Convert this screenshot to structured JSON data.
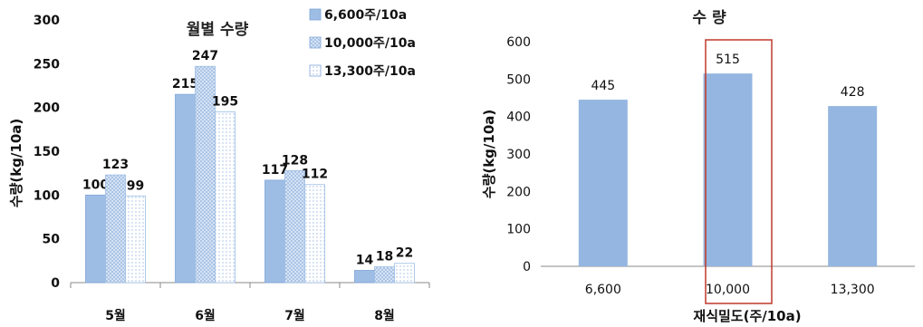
{
  "chart_data": [
    {
      "type": "bar",
      "title": "월별 수량",
      "ylabel": "수량(kg/10a)",
      "xlabel": "",
      "categories": [
        "5월",
        "6월",
        "7월",
        "8월"
      ],
      "ylim": [
        0,
        300
      ],
      "yticks": [
        0,
        50,
        100,
        150,
        200,
        250,
        300
      ],
      "grid": false,
      "legend_position": "top-right",
      "series": [
        {
          "name": "6,600주/10a",
          "values": [
            100,
            215,
            117,
            14
          ],
          "color": "#9dbde4",
          "pattern": "solid"
        },
        {
          "name": "10,000주/10a",
          "values": [
            123,
            247,
            128,
            18
          ],
          "color": "#c9dbf1",
          "pattern": "crosshatch"
        },
        {
          "name": "13,300주/10a",
          "values": [
            99,
            195,
            112,
            22
          ],
          "color": "#e3ecf8",
          "pattern": "dots"
        }
      ]
    },
    {
      "type": "bar",
      "title": "수 량",
      "ylabel": "수량(kg/10a)",
      "xlabel": "재식밀도(주/10a)",
      "categories": [
        "6,600",
        "10,000",
        "13,300"
      ],
      "values": [
        445,
        515,
        428
      ],
      "ylim": [
        0,
        600
      ],
      "yticks": [
        0,
        100,
        200,
        300,
        400,
        500,
        600
      ],
      "grid": false,
      "color": "#94b6e0",
      "highlight_category": "10,000",
      "highlight_color": "#c0392b"
    }
  ]
}
